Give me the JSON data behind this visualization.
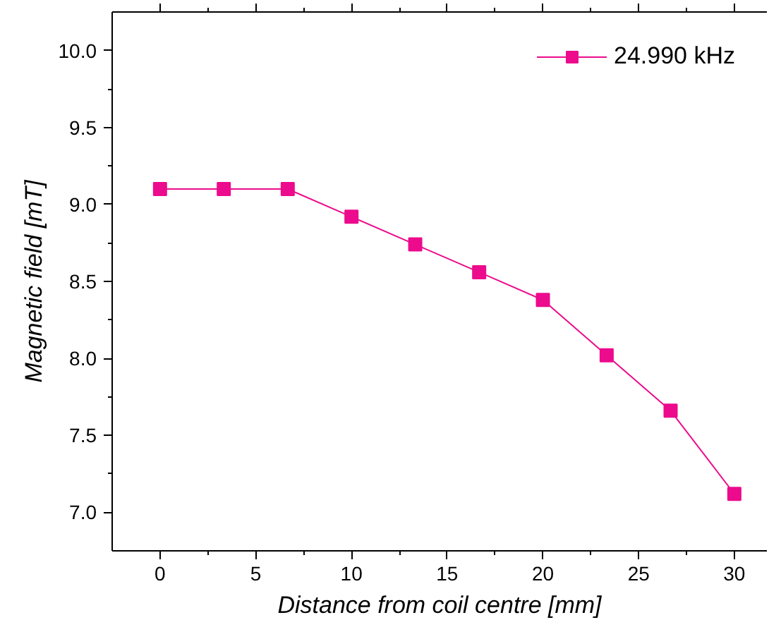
{
  "chart_data": {
    "type": "line",
    "xlabel": "Distance from coil centre [mm]",
    "ylabel": "Magnetic field [mT]",
    "x": [
      0,
      3.33,
      6.67,
      10,
      13.33,
      16.67,
      20,
      23.33,
      26.67,
      30
    ],
    "series": [
      {
        "name": "24.990 kHz",
        "color": "#ec0b8c",
        "values": [
          9.1,
          9.1,
          9.1,
          8.92,
          8.74,
          8.56,
          8.38,
          8.02,
          7.66,
          7.12
        ]
      }
    ],
    "xlim": [
      -2.5,
      31.7
    ],
    "xticks": [
      0,
      5,
      10,
      15,
      20,
      25,
      30
    ],
    "ylim": [
      6.75,
      10.25
    ],
    "yticks": [
      {
        "value": 7,
        "label": "7.0"
      },
      7.5,
      {
        "value": 8,
        "label": "8.0"
      },
      8.5,
      {
        "value": 9,
        "label": "9.0"
      },
      9.5,
      {
        "value": 10,
        "label": "10.0"
      }
    ],
    "grid": false,
    "legend": "top right",
    "marker": "square",
    "line_style": "solid"
  }
}
